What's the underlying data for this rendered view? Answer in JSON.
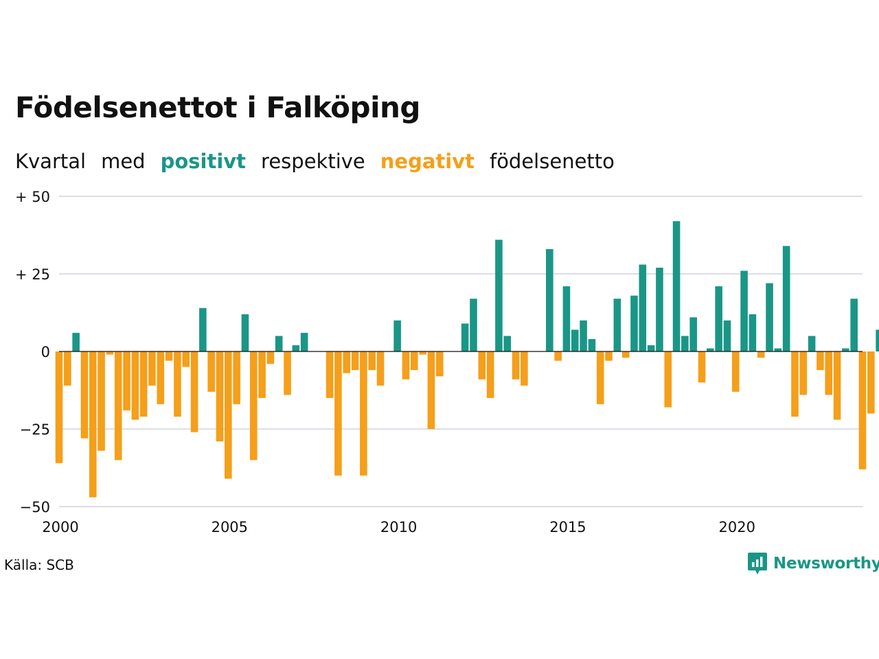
{
  "title": "Födelsenettot i Falköping",
  "subtitle": {
    "part1": "Kvartal",
    "part2": "med",
    "positive": "positivt",
    "part3": "respektive",
    "negative": "negativt",
    "part4": "födelsenetto"
  },
  "colors": {
    "positive": "#1a9687",
    "negative": "#f59f1a",
    "grid": "#dddde6",
    "text": "#111111"
  },
  "source": "Källa: SCB",
  "brand": {
    "name": "Newsworthy",
    "icon": "newsworthy-logo-icon"
  },
  "chart_data": {
    "type": "bar",
    "x_start": 2000.0,
    "x_step": 0.25,
    "xlim": [
      2000,
      2023.75
    ],
    "ylim": [
      -50,
      50
    ],
    "y_ticks": [
      {
        "value": 50,
        "label": "+ 50"
      },
      {
        "value": 25,
        "label": "+ 25"
      },
      {
        "value": 0,
        "label": "0"
      },
      {
        "value": -25,
        "label": "−25"
      },
      {
        "value": -50,
        "label": "−50"
      }
    ],
    "x_ticks": [
      {
        "value": 2000,
        "label": "2000"
      },
      {
        "value": 2005,
        "label": "2005"
      },
      {
        "value": 2010,
        "label": "2010"
      },
      {
        "value": 2015,
        "label": "2015"
      },
      {
        "value": 2020,
        "label": "2020"
      }
    ],
    "grid": true,
    "values": [
      -36,
      -11,
      6,
      -28,
      -47,
      -32,
      -1,
      -35,
      -19,
      -22,
      -21,
      -11,
      -17,
      -3,
      -21,
      -5,
      -26,
      14,
      -13,
      -29,
      -41,
      -17,
      12,
      -35,
      -15,
      -4,
      5,
      -14,
      2,
      6,
      0,
      0,
      -15,
      -40,
      -7,
      -6,
      -40,
      -6,
      -11,
      0,
      10,
      -9,
      -6,
      -1,
      -25,
      -8,
      0,
      0,
      9,
      17,
      -9,
      -15,
      36,
      5,
      -9,
      -11,
      0,
      0,
      33,
      -3,
      21,
      7,
      10,
      4,
      -17,
      -3,
      17,
      -2,
      18,
      28,
      2,
      27,
      -18,
      42,
      5,
      11,
      -10,
      1,
      21,
      10,
      -13,
      26,
      12,
      -2,
      22,
      1,
      34,
      -21,
      -14,
      5,
      -6,
      -14,
      -22,
      1,
      17,
      -38,
      -20,
      7
    ]
  }
}
